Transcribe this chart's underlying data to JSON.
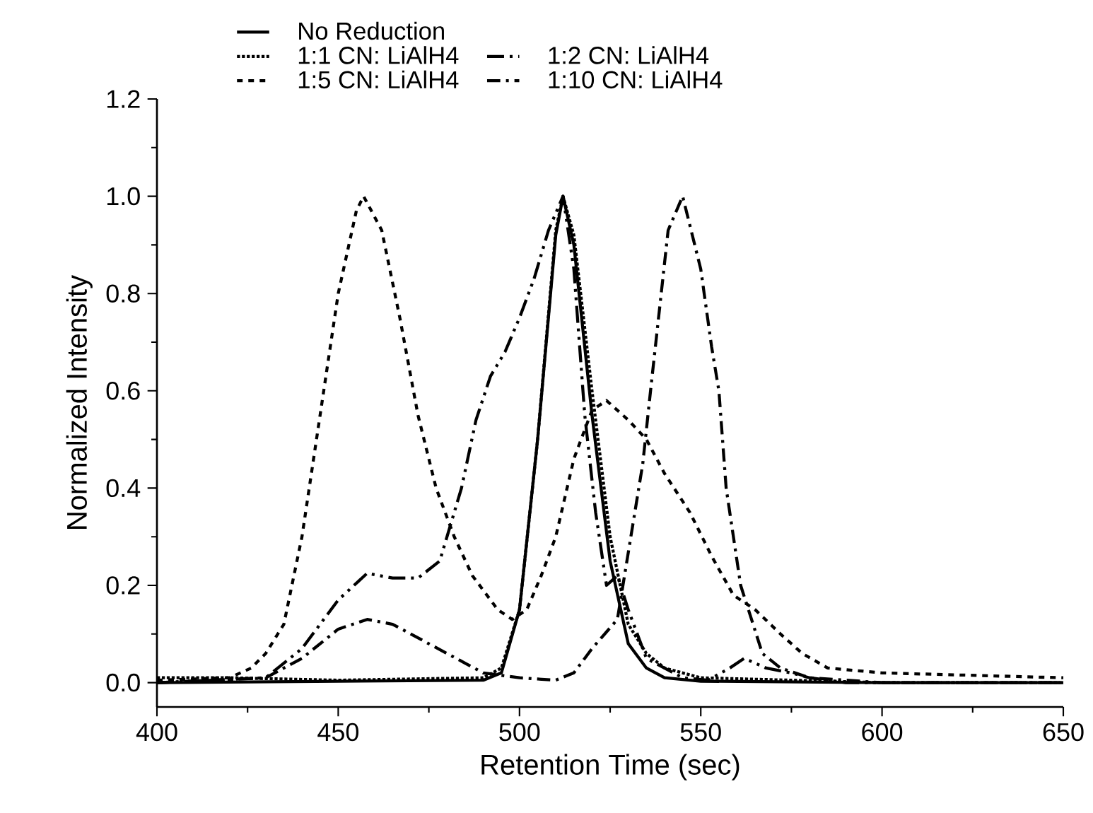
{
  "chart_data": {
    "type": "line",
    "xlabel": "Retention Time (sec)",
    "ylabel": "Normalized Intensity",
    "xlim": [
      400,
      650
    ],
    "xticks": [
      400,
      450,
      500,
      550,
      600,
      650
    ],
    "ylim": [
      -0.05,
      1.2
    ],
    "yticks": [
      {
        "value": 0,
        "label": "0.0"
      },
      {
        "value": 0.2,
        "label": "0.2"
      },
      {
        "value": 0.4,
        "label": "0.4"
      },
      {
        "value": 0.6,
        "label": "0.6"
      },
      {
        "value": 0.8,
        "label": "0.8"
      },
      {
        "value": 1.0,
        "label": "1.0"
      },
      {
        "value": 1.2,
        "label": "1.2"
      }
    ],
    "grid": false,
    "legend": "top left",
    "series": [
      {
        "name": "No Reduction",
        "color": "#000000",
        "line_style": "solid",
        "x": [
          400,
          450,
          490,
          495,
          500,
          505,
          510,
          512,
          515,
          520,
          525,
          530,
          535,
          540,
          550,
          600,
          650
        ],
        "values": [
          0,
          0.003,
          0.005,
          0.02,
          0.15,
          0.5,
          0.92,
          1.0,
          0.9,
          0.55,
          0.25,
          0.08,
          0.03,
          0.01,
          0.003,
          0,
          0
        ]
      },
      {
        "name": "1:1 CN: LiAlH4",
        "color": "#000000",
        "line_style": "dotted",
        "x": [
          400,
          420,
          450,
          490,
          495,
          500,
          505,
          510,
          512,
          515,
          520,
          525,
          530,
          535,
          540,
          550,
          600,
          650
        ],
        "values": [
          0.01,
          0.01,
          0.005,
          0.01,
          0.03,
          0.15,
          0.5,
          0.93,
          1.0,
          0.92,
          0.6,
          0.3,
          0.12,
          0.06,
          0.03,
          0.01,
          0,
          0
        ]
      },
      {
        "name": "1:2 CN: LiAlH4",
        "color": "#000000",
        "line_style": "dashdotdot",
        "x": [
          400,
          430,
          440,
          450,
          458,
          465,
          472,
          478,
          484,
          488,
          492,
          496,
          500,
          504,
          508,
          512,
          515,
          518,
          521,
          524,
          527,
          530,
          535,
          545,
          552,
          558,
          562,
          568,
          575,
          580,
          590,
          650
        ],
        "values": [
          0,
          0.01,
          0.07,
          0.17,
          0.225,
          0.215,
          0.215,
          0.25,
          0.4,
          0.54,
          0.63,
          0.68,
          0.75,
          0.83,
          0.93,
          1.0,
          0.85,
          0.55,
          0.35,
          0.2,
          0.22,
          0.15,
          0.05,
          0.01,
          0.005,
          0.03,
          0.05,
          0.03,
          0.02,
          0.01,
          0,
          0
        ]
      },
      {
        "name": "1:5 CN: LiAlH4",
        "color": "#000000",
        "line_style": "dashed",
        "x": [
          400,
          420,
          426,
          430,
          435,
          440,
          445,
          450,
          455,
          457,
          462,
          467,
          472,
          477,
          482,
          487,
          490,
          494,
          498,
          502,
          506,
          510,
          515,
          520,
          524,
          530,
          535,
          540,
          547,
          553,
          559,
          565,
          572,
          578,
          585,
          600,
          625,
          650
        ],
        "values": [
          0.005,
          0.01,
          0.03,
          0.06,
          0.12,
          0.3,
          0.55,
          0.8,
          0.97,
          1.0,
          0.93,
          0.75,
          0.55,
          0.4,
          0.3,
          0.22,
          0.19,
          0.15,
          0.13,
          0.15,
          0.22,
          0.3,
          0.46,
          0.56,
          0.58,
          0.54,
          0.5,
          0.43,
          0.35,
          0.26,
          0.18,
          0.15,
          0.1,
          0.06,
          0.03,
          0.02,
          0.015,
          0.01
        ]
      },
      {
        "name": "1:10 CN: LiAlH4",
        "color": "#000000",
        "line_style": "dashdot",
        "x": [
          400,
          430,
          440,
          450,
          458,
          465,
          475,
          485,
          490,
          495,
          500,
          510,
          515,
          520,
          527,
          534,
          536,
          541,
          545,
          550,
          553,
          555,
          557,
          561,
          567,
          572,
          580,
          600,
          650
        ],
        "values": [
          0,
          0.01,
          0.05,
          0.11,
          0.13,
          0.12,
          0.08,
          0.04,
          0.02,
          0.015,
          0.01,
          0.005,
          0.02,
          0.07,
          0.13,
          0.45,
          0.59,
          0.93,
          1.0,
          0.85,
          0.69,
          0.6,
          0.4,
          0.2,
          0.06,
          0.03,
          0.01,
          0,
          0
        ]
      }
    ]
  }
}
